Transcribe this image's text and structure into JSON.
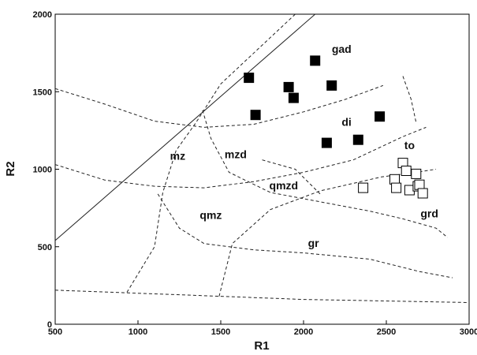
{
  "chart_data": {
    "type": "scatter",
    "title": "",
    "xlabel": "R1",
    "ylabel": "R2",
    "xlim": [
      500,
      3000
    ],
    "ylim": [
      0,
      2000
    ],
    "x_ticks": [
      500,
      1000,
      1500,
      2000,
      2500,
      3000
    ],
    "y_ticks": [
      0,
      500,
      1000,
      1500,
      2000
    ],
    "x_tick_labels": [
      "500",
      "1000",
      "1500",
      "2000",
      "2500",
      "3000"
    ],
    "y_tick_labels": [
      "0",
      "500",
      "1000",
      "1500",
      "2000"
    ],
    "grid": false,
    "series": [
      {
        "marker": "filled-square",
        "color": "#000000",
        "points": [
          [
            1670,
            1590
          ],
          [
            1710,
            1350
          ],
          [
            1910,
            1530
          ],
          [
            1940,
            1460
          ],
          [
            2070,
            1700
          ],
          [
            2170,
            1540
          ],
          [
            2460,
            1340
          ],
          [
            2140,
            1170
          ],
          [
            2330,
            1190
          ]
        ]
      },
      {
        "marker": "open-square",
        "color": "#000000",
        "points": [
          [
            2360,
            880
          ],
          [
            2550,
            935
          ],
          [
            2560,
            880
          ],
          [
            2600,
            1040
          ],
          [
            2620,
            990
          ],
          [
            2640,
            865
          ],
          [
            2680,
            970
          ],
          [
            2690,
            890
          ],
          [
            2700,
            900
          ],
          [
            2720,
            845
          ]
        ]
      }
    ],
    "reference_lines": [
      {
        "style": "solid",
        "points": [
          [
            500,
            540
          ],
          [
            2070,
            2000
          ]
        ]
      },
      {
        "style": "dashed",
        "points": [
          [
            1950,
            2000
          ],
          [
            1500,
            1550
          ],
          [
            1350,
            1300
          ],
          [
            1230,
            1120
          ],
          [
            1150,
            850
          ],
          [
            1100,
            500
          ],
          [
            930,
            200
          ]
        ]
      },
      {
        "style": "dashed",
        "points": [
          [
            500,
            1520
          ],
          [
            800,
            1420
          ],
          [
            1100,
            1310
          ],
          [
            1400,
            1270
          ],
          [
            1700,
            1290
          ],
          [
            2000,
            1370
          ],
          [
            2250,
            1450
          ],
          [
            2480,
            1540
          ]
        ]
      },
      {
        "style": "dashed",
        "points": [
          [
            500,
            1030
          ],
          [
            800,
            930
          ],
          [
            1100,
            890
          ],
          [
            1400,
            880
          ],
          [
            1700,
            920
          ],
          [
            2000,
            980
          ],
          [
            2300,
            1060
          ],
          [
            2600,
            1210
          ],
          [
            2740,
            1270
          ]
        ]
      },
      {
        "style": "dashed",
        "points": [
          [
            1390,
            1380
          ],
          [
            1440,
            1200
          ],
          [
            1550,
            980
          ],
          [
            1800,
            850
          ],
          [
            2100,
            790
          ],
          [
            2400,
            730
          ],
          [
            2600,
            680
          ],
          [
            2800,
            620
          ],
          [
            2870,
            560
          ]
        ]
      },
      {
        "style": "dashed",
        "points": [
          [
            1120,
            840
          ],
          [
            1250,
            620
          ],
          [
            1400,
            520
          ],
          [
            1700,
            480
          ],
          [
            2000,
            460
          ],
          [
            2400,
            420
          ],
          [
            2700,
            340
          ],
          [
            2900,
            300
          ]
        ]
      },
      {
        "style": "dashed",
        "points": [
          [
            1750,
            1060
          ],
          [
            1950,
            1000
          ],
          [
            2110,
            830
          ]
        ]
      },
      {
        "style": "dashed",
        "points": [
          [
            1490,
            180
          ],
          [
            1570,
            520
          ],
          [
            1800,
            740
          ],
          [
            2100,
            860
          ],
          [
            2470,
            950
          ],
          [
            2680,
            980
          ],
          [
            2800,
            1000
          ]
        ]
      },
      {
        "style": "dashed",
        "points": [
          [
            500,
            220
          ],
          [
            1000,
            200
          ],
          [
            1500,
            180
          ],
          [
            2000,
            160
          ],
          [
            2500,
            150
          ],
          [
            3000,
            140
          ]
        ]
      },
      {
        "style": "dashed",
        "points": [
          [
            2600,
            1600
          ],
          [
            2650,
            1450
          ],
          [
            2680,
            1300
          ]
        ]
      }
    ],
    "annotations": [
      {
        "text": "gad",
        "x": 2230,
        "y": 1750
      },
      {
        "text": "di",
        "x": 2260,
        "y": 1280
      },
      {
        "text": "to",
        "x": 2640,
        "y": 1130
      },
      {
        "text": "mz",
        "x": 1240,
        "y": 1060
      },
      {
        "text": "mzd",
        "x": 1590,
        "y": 1070
      },
      {
        "text": "qmzd",
        "x": 1880,
        "y": 870
      },
      {
        "text": "qmz",
        "x": 1440,
        "y": 680
      },
      {
        "text": "gr",
        "x": 2060,
        "y": 500
      },
      {
        "text": "grd",
        "x": 2760,
        "y": 690
      }
    ]
  }
}
